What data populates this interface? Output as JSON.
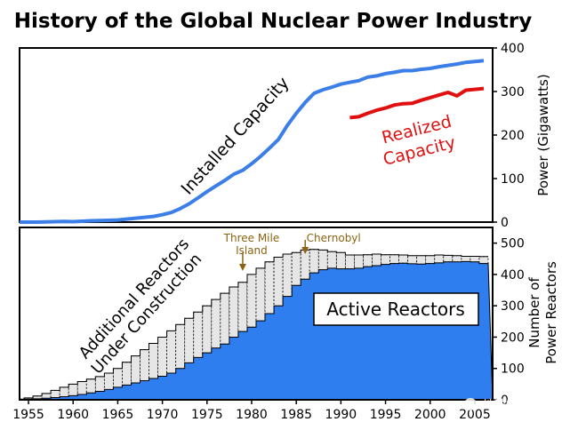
{
  "title": "History of the Global Nuclear Power Industry",
  "colors": {
    "installed": "#3b7ee8",
    "realized": "#e01010",
    "active_fill": "#2f7ef0",
    "construction_fill": "#e6e6e6",
    "annotation": "#8a6410"
  },
  "watermark": "地球知识局",
  "x_ticks": [
    1955,
    1960,
    1965,
    1970,
    1975,
    1980,
    1985,
    1990,
    1995,
    2000,
    2005
  ],
  "chart_data": [
    {
      "type": "line",
      "xlim": [
        1954,
        2007
      ],
      "ylim": [
        0,
        400
      ],
      "yticks": [
        0,
        100,
        200,
        300,
        400
      ],
      "ylabel": "Power (Gigawatts)",
      "series": [
        {
          "name": "Installed Capacity",
          "label_lines": [
            "Installed Capacity"
          ],
          "color": "#3b7ee8",
          "x": [
            1954,
            1955,
            1956,
            1957,
            1958,
            1959,
            1960,
            1961,
            1962,
            1963,
            1964,
            1965,
            1966,
            1967,
            1968,
            1969,
            1970,
            1971,
            1972,
            1973,
            1974,
            1975,
            1976,
            1977,
            1978,
            1979,
            1980,
            1981,
            1982,
            1983,
            1984,
            1985,
            1986,
            1987,
            1988,
            1989,
            1990,
            1991,
            1992,
            1993,
            1994,
            1995,
            1996,
            1997,
            1998,
            1999,
            2000,
            2001,
            2002,
            2003,
            2004,
            2005,
            2006
          ],
          "values": [
            0,
            0,
            0,
            0.5,
            1,
            1.5,
            1,
            2,
            3,
            3.5,
            4,
            5,
            7,
            9,
            11,
            13,
            17,
            22,
            31,
            42,
            56,
            70,
            83,
            96,
            110,
            119,
            134,
            151,
            170,
            190,
            222,
            250,
            275,
            296,
            304,
            310,
            317,
            321,
            325,
            333,
            336,
            341,
            344,
            348,
            348,
            351,
            353,
            357,
            360,
            363,
            367,
            369,
            371
          ]
        },
        {
          "name": "Realized Capacity",
          "label_lines": [
            "Realized",
            "Capacity"
          ],
          "color": "#e01010",
          "x": [
            1991,
            1992,
            1993,
            1994,
            1995,
            1996,
            1997,
            1998,
            1999,
            2000,
            2001,
            2002,
            2003,
            2004,
            2005,
            2006
          ],
          "values": [
            240,
            242,
            250,
            257,
            262,
            269,
            272,
            273,
            280,
            286,
            292,
            298,
            290,
            303,
            305,
            307
          ]
        }
      ]
    },
    {
      "type": "bar",
      "xlim": [
        1954,
        2007
      ],
      "ylim": [
        0,
        550
      ],
      "yticks": [
        0,
        100,
        200,
        300,
        400,
        500
      ],
      "ylabel": "Number of Power Reactors",
      "years": [
        1954,
        1955,
        1956,
        1957,
        1958,
        1959,
        1960,
        1961,
        1962,
        1963,
        1964,
        1965,
        1966,
        1967,
        1968,
        1969,
        1970,
        1971,
        1972,
        1973,
        1974,
        1975,
        1976,
        1977,
        1978,
        1979,
        1980,
        1981,
        1982,
        1983,
        1984,
        1985,
        1986,
        1987,
        1988,
        1989,
        1990,
        1991,
        1992,
        1993,
        1994,
        1995,
        1996,
        1997,
        1998,
        1999,
        2000,
        2001,
        2002,
        2003,
        2004,
        2005,
        2006
      ],
      "series": [
        {
          "name": "Active Reactors",
          "values": [
            1,
            2,
            3,
            5,
            7,
            10,
            13,
            17,
            22,
            27,
            33,
            40,
            47,
            54,
            61,
            68,
            75,
            85,
            100,
            118,
            135,
            150,
            165,
            178,
            200,
            218,
            232,
            252,
            275,
            300,
            330,
            365,
            385,
            405,
            415,
            420,
            418,
            418,
            420,
            425,
            428,
            432,
            435,
            436,
            434,
            433,
            435,
            437,
            440,
            440,
            441,
            440,
            435
          ]
        },
        {
          "name": "Additional Reactors Under Construction",
          "label_lines": [
            "Additional Reactors",
            "Under Construction"
          ],
          "values": [
            2,
            6,
            12,
            20,
            30,
            40,
            50,
            58,
            66,
            74,
            85,
            100,
            120,
            140,
            160,
            180,
            200,
            220,
            240,
            260,
            280,
            300,
            320,
            340,
            360,
            375,
            400,
            420,
            440,
            455,
            465,
            470,
            478,
            480,
            478,
            473,
            470,
            462,
            462,
            463,
            465,
            463,
            463,
            462,
            460,
            460,
            460,
            462,
            461,
            460,
            458,
            458,
            457
          ]
        }
      ],
      "annotations": [
        {
          "label_lines": [
            "Three Mile",
            "Island"
          ],
          "year": 1979
        },
        {
          "label_lines": [
            "Chernobyl"
          ],
          "year": 1986
        }
      ]
    }
  ]
}
